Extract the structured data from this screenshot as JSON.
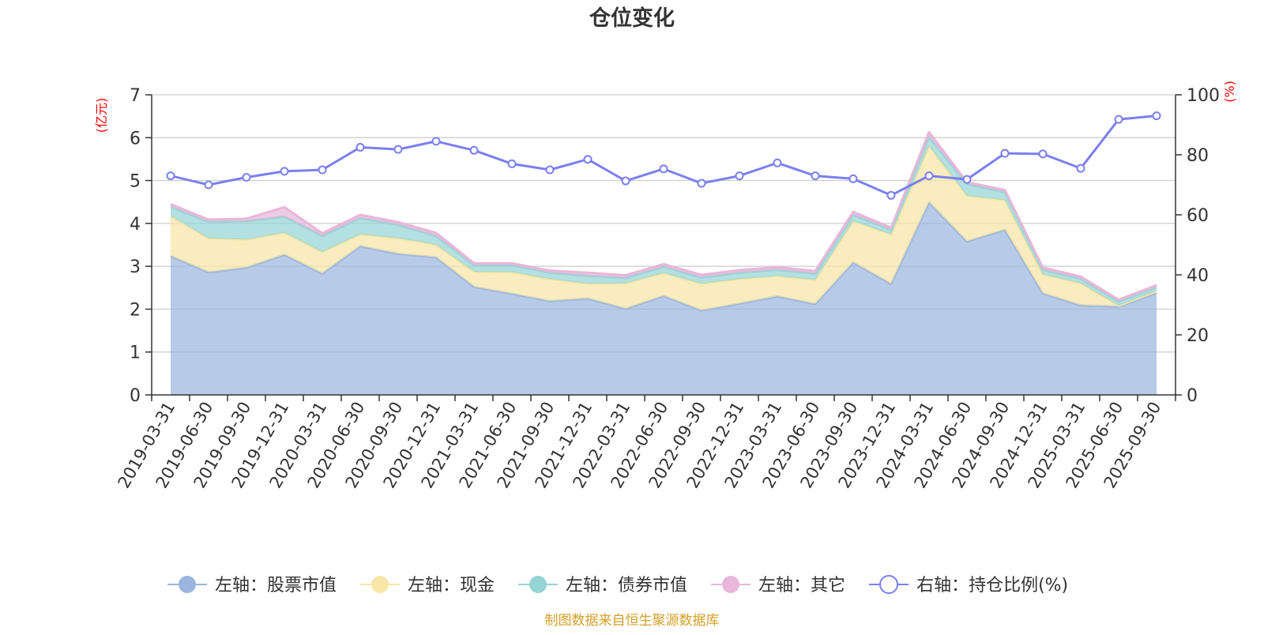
{
  "chart_data": {
    "type": "area",
    "title": "仓位变化",
    "left_axis": {
      "unit": "(亿元)",
      "range": [
        0,
        7
      ],
      "ticks": [
        0,
        1,
        2,
        3,
        4,
        5,
        6,
        7
      ]
    },
    "right_axis": {
      "unit": "(%)",
      "range": [
        0,
        100
      ],
      "ticks": [
        0,
        20,
        40,
        60,
        80,
        100
      ]
    },
    "categories": [
      "2019-03-31",
      "2019-06-30",
      "2019-09-30",
      "2019-12-31",
      "2020-03-31",
      "2020-06-30",
      "2020-09-30",
      "2020-12-31",
      "2021-03-31",
      "2021-06-30",
      "2021-09-30",
      "2021-12-31",
      "2022-03-31",
      "2022-06-30",
      "2022-09-30",
      "2022-12-31",
      "2023-03-31",
      "2023-06-30",
      "2023-09-30",
      "2023-12-31",
      "2024-03-31",
      "2024-06-30",
      "2024-09-30",
      "2024-12-31",
      "2025-03-31",
      "2025-06-30",
      "2025-09-30"
    ],
    "series": [
      {
        "name": "左轴：股票市值",
        "axis": "left",
        "kind": "stacked-area",
        "color": "#9bb5de",
        "values": [
          3.24,
          2.86,
          2.97,
          3.27,
          2.83,
          3.47,
          3.29,
          3.21,
          2.52,
          2.36,
          2.19,
          2.25,
          2.01,
          2.31,
          1.97,
          2.13,
          2.3,
          2.12,
          3.09,
          2.59,
          4.49,
          3.58,
          3.85,
          2.37,
          2.09,
          2.06,
          2.38
        ]
      },
      {
        "name": "左轴：现金",
        "axis": "left",
        "kind": "stacked-area",
        "color": "#f7e6a6",
        "values": [
          0.93,
          0.79,
          0.65,
          0.51,
          0.5,
          0.27,
          0.36,
          0.29,
          0.35,
          0.5,
          0.51,
          0.34,
          0.59,
          0.53,
          0.62,
          0.57,
          0.47,
          0.56,
          0.96,
          1.15,
          1.31,
          1.06,
          0.69,
          0.44,
          0.51,
          0.02,
          0.04
        ]
      },
      {
        "name": "左轴：债券市值",
        "axis": "left",
        "kind": "stacked-area",
        "color": "#96d4d6",
        "values": [
          0.22,
          0.39,
          0.43,
          0.38,
          0.38,
          0.39,
          0.32,
          0.21,
          0.16,
          0.17,
          0.15,
          0.19,
          0.13,
          0.15,
          0.15,
          0.15,
          0.15,
          0.15,
          0.15,
          0.11,
          0.22,
          0.28,
          0.19,
          0.11,
          0.11,
          0.1,
          0.09
        ]
      },
      {
        "name": "左轴：其它",
        "axis": "left",
        "kind": "stacked-area",
        "color": "#e8b7d9",
        "values": [
          0.06,
          0.05,
          0.06,
          0.22,
          0.06,
          0.07,
          0.06,
          0.07,
          0.04,
          0.04,
          0.05,
          0.07,
          0.06,
          0.06,
          0.06,
          0.06,
          0.06,
          0.06,
          0.07,
          0.05,
          0.11,
          0.04,
          0.05,
          0.05,
          0.05,
          0.04,
          0.05
        ]
      },
      {
        "name": "右轴：持仓比例(%)",
        "axis": "right",
        "kind": "line",
        "color": "#7b7ff0",
        "values": [
          73.0,
          70.0,
          72.5,
          74.5,
          75.0,
          82.5,
          81.8,
          84.5,
          81.5,
          77.0,
          75.0,
          78.5,
          71.3,
          75.3,
          70.5,
          73.0,
          77.3,
          73.0,
          72.0,
          66.5,
          73.0,
          71.8,
          80.5,
          80.3,
          75.5,
          91.8,
          93.0
        ]
      }
    ],
    "legend_position": "bottom-center",
    "grid": true
  },
  "footer": {
    "source_text": "制图数据来自恒生聚源数据库"
  }
}
